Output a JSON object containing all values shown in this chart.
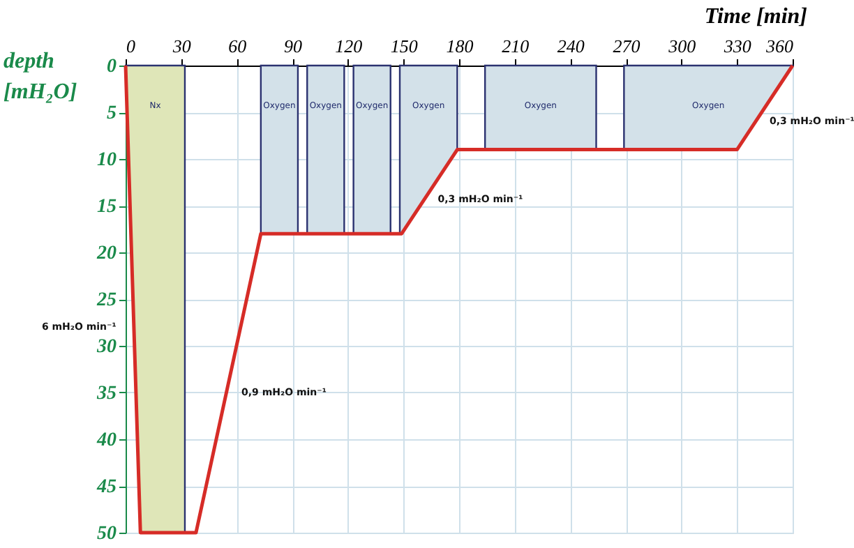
{
  "chart_data": {
    "type": "line",
    "xlabel": "Time [min]",
    "ylabel": "depth [mH₂O]",
    "xlim": [
      0,
      360
    ],
    "xticks": [
      0,
      30,
      60,
      90,
      120,
      150,
      180,
      210,
      240,
      270,
      300,
      330,
      360
    ],
    "ylim": [
      50,
      0
    ],
    "yticks": [
      0,
      5,
      10,
      15,
      20,
      25,
      30,
      35,
      40,
      45,
      50
    ],
    "grid": true,
    "series": [
      {
        "type": "area",
        "name": "Nx",
        "color": "#dfe6b8",
        "x": [
          0,
          8,
          32
        ],
        "values": [
          0,
          50,
          50
        ]
      },
      {
        "type": "area",
        "name": "Oxygen",
        "color": "#d3e1e9",
        "x": [
          73,
          93
        ],
        "values": [
          18,
          18
        ]
      },
      {
        "type": "area",
        "name": "Oxygen",
        "color": "#d3e1e9",
        "x": [
          98,
          118
        ],
        "values": [
          18,
          18
        ]
      },
      {
        "type": "area",
        "name": "Oxygen",
        "color": "#d3e1e9",
        "x": [
          123,
          143
        ],
        "values": [
          18,
          18
        ]
      },
      {
        "type": "area",
        "name": "Oxygen",
        "color": "#d3e1e9",
        "x": [
          148,
          149,
          179
        ],
        "values": [
          18,
          18,
          9
        ]
      },
      {
        "type": "area",
        "name": "Oxygen",
        "color": "#d3e1e9",
        "x": [
          194,
          254
        ],
        "values": [
          9,
          9
        ]
      },
      {
        "type": "area",
        "name": "Oxygen",
        "color": "#d3e1e9",
        "x": [
          269,
          330,
          360
        ],
        "values": [
          9,
          9,
          0
        ]
      },
      {
        "color": "#d62c27",
        "x": [
          0,
          8,
          38,
          73,
          149,
          179,
          330,
          360
        ],
        "values": [
          0,
          50,
          50,
          18,
          18,
          9,
          9,
          0
        ]
      }
    ],
    "annotations": [
      {
        "text": "6 mH₂O min⁻¹",
        "x": 4,
        "y": 28
      },
      {
        "text": "0,9 mH₂O min⁻¹",
        "x": 55,
        "y": 35
      },
      {
        "text": "0,3 mH₂O min⁻¹",
        "x": 161,
        "y": 14.3
      },
      {
        "text": "0,3 mH₂O min⁻¹",
        "x": 340,
        "y": 6
      }
    ]
  }
}
